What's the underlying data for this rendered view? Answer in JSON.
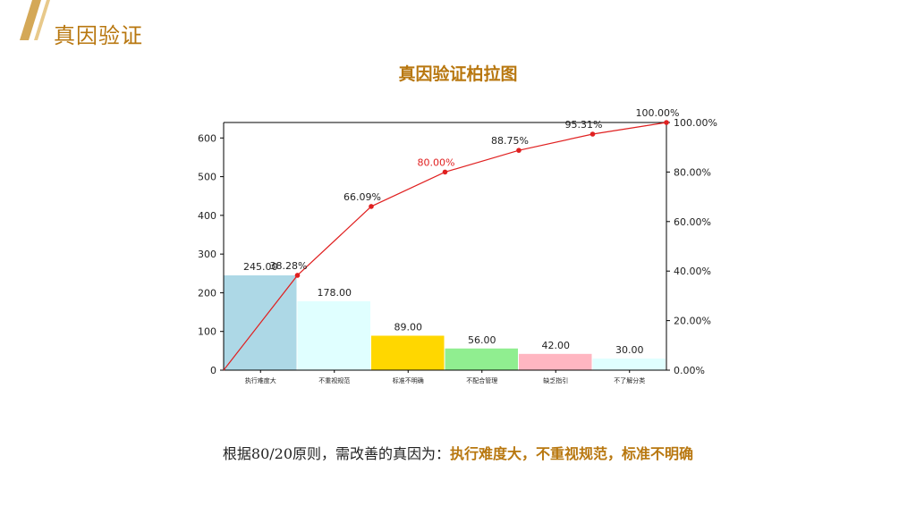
{
  "header": {
    "title": "真因验证"
  },
  "colors": {
    "accent": "#b8770f",
    "cumulative_line": "#e02020"
  },
  "chart_data": {
    "type": "bar",
    "title": "真因验证柏拉图",
    "categories": [
      "执行难度大",
      "不重视规范",
      "标准不明确",
      "不配合管理",
      "缺乏指引",
      "不了解分类"
    ],
    "values": [
      245,
      178,
      89,
      56,
      42,
      30
    ],
    "value_labels": [
      "245.00",
      "178.00",
      "89.00",
      "56.00",
      "42.00",
      "30.00"
    ],
    "bar_colors": [
      "#add8e6",
      "#e0ffff",
      "#ffd700",
      "#90ee90",
      "#ffb6c1",
      "#e0ffff"
    ],
    "cumulative_percent": [
      0,
      38.28,
      66.09,
      80.0,
      88.75,
      95.31,
      100.0
    ],
    "cumulative_labels": [
      "",
      "38.28%",
      "66.09%",
      "80.00%",
      "88.75%",
      "95.31%",
      "100.00%"
    ],
    "highlight_label_index": 3,
    "ylim": [
      0,
      640
    ],
    "y_ticks": [
      "0",
      "100",
      "200",
      "300",
      "400",
      "500",
      "600"
    ],
    "y2lim": [
      0,
      100
    ],
    "y2_ticks": [
      "0.00%",
      "20.00%",
      "40.00%",
      "60.00%",
      "80.00%",
      "100.00%"
    ],
    "grid": false
  },
  "conclusion": {
    "prefix": "根据80/20原则，需改善的真因为：",
    "highlight": "执行难度大，不重视规范，标准不明确"
  }
}
